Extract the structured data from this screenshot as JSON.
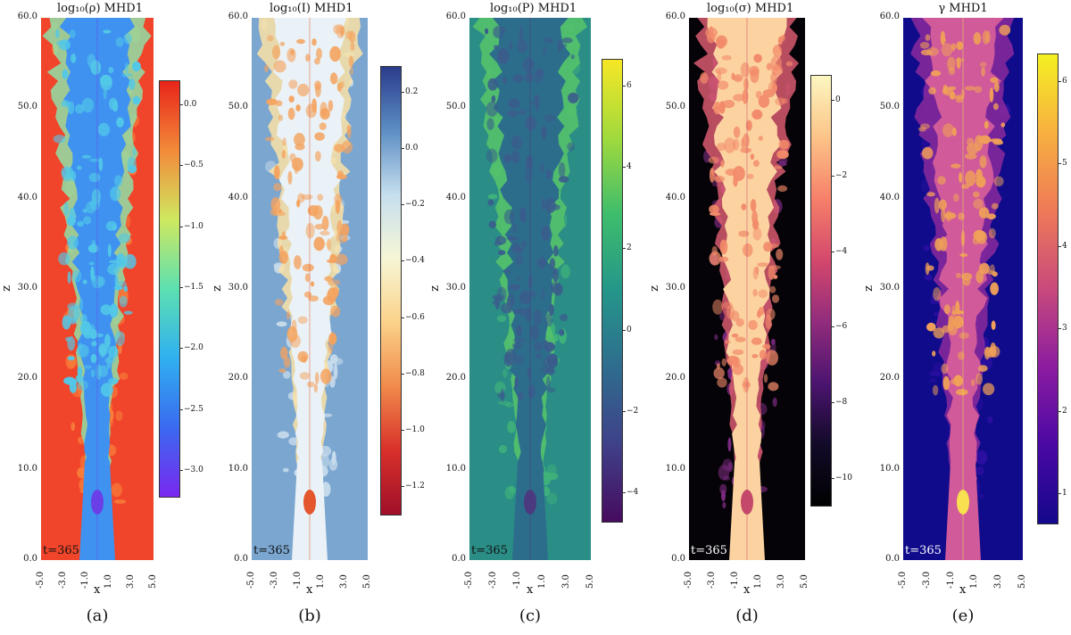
{
  "panels": [
    {
      "title": "log₁₀(ρ) MHD1",
      "caption": "(a)",
      "time_label": "t=365",
      "colorbar": [
        "0.0",
        "−0.5",
        "−1.0",
        "−1.5",
        "−2.0",
        "−2.5",
        "−3.0"
      ],
      "colors": {
        "bg": "#f0452b",
        "bg2": "#f77d3a",
        "jet": "#3f92f0",
        "jet2": "#52c8e8",
        "core": "#6a3fe8",
        "mid": "#8fe0a8"
      }
    },
    {
      "title": "log₁₀(I) MHD1",
      "caption": "(b)",
      "time_label": "t=365",
      "colorbar": [
        "0.2",
        "0.0",
        "−0.2",
        "−0.4",
        "−0.6",
        "−0.8",
        "−1.0",
        "−1.2"
      ],
      "colors": {
        "bg": "#7aa6d0",
        "bg2": "#c8dcec",
        "jet": "#eaf2f7",
        "jet2": "#f4a35f",
        "core": "#e4572e",
        "mid": "#fbe2a6"
      }
    },
    {
      "title": "log₁₀(P) MHD1",
      "caption": "(c)",
      "time_label": "t=365",
      "colorbar": [
        "6",
        "4",
        "2",
        "0",
        "−2",
        "−4"
      ],
      "colors": {
        "bg": "#2a8d86",
        "bg2": "#3fb27a",
        "jet": "#2d6d8c",
        "jet2": "#3a5d8c",
        "core": "#4b3a7f",
        "mid": "#56c46a"
      }
    },
    {
      "title": "log₁₀(σ) MHD1",
      "caption": "(d)",
      "time_label": "t=365",
      "colorbar": [
        "0",
        "−2",
        "−4",
        "−6",
        "−8",
        "−10"
      ],
      "colors": {
        "bg": "#050308",
        "bg2": "#7a2a7e",
        "jet": "#fcd3a0",
        "jet2": "#f28a6a",
        "core": "#c4486a",
        "mid": "#d85a70"
      }
    },
    {
      "title": "γ MHD1",
      "caption": "(e)",
      "time_label": "t=365",
      "colorbar": [
        "6",
        "5",
        "4",
        "3",
        "2",
        "1"
      ],
      "colors": {
        "bg": "#100b8a",
        "bg2": "#2a0fa0",
        "jet": "#d05a9a",
        "jet2": "#f0a058",
        "core": "#f8e050",
        "mid": "#8c2a9c"
      }
    }
  ],
  "axes": {
    "ylabel": "z",
    "xlabel": "x",
    "yticks": [
      "0.0",
      "10.0",
      "20.0",
      "30.0",
      "40.0",
      "50.0",
      "60.0"
    ],
    "xticks": [
      "-5.0",
      "-3.0",
      "-1.0",
      "1.0",
      "3.0",
      "5.0"
    ]
  }
}
